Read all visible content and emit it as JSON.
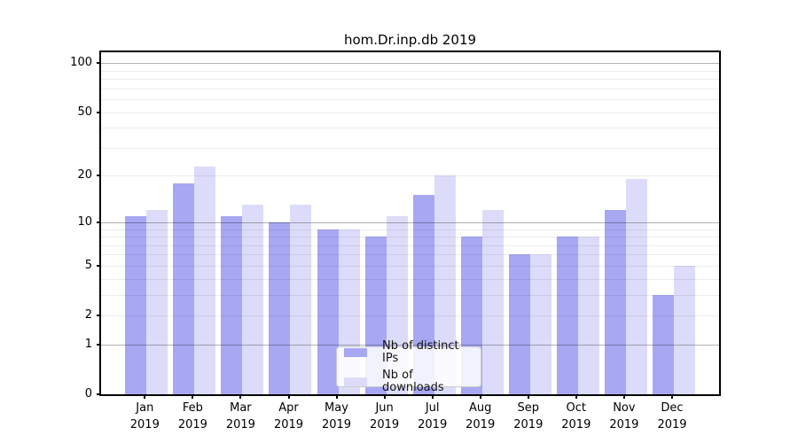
{
  "chart": {
    "title": "hom.Dr.inp.db 2019"
  },
  "chart_data": {
    "type": "bar",
    "title": "hom.Dr.inp.db 2019",
    "categories": [
      "Jan",
      "Feb",
      "Mar",
      "Apr",
      "May",
      "Jun",
      "Jul",
      "Aug",
      "Sep",
      "Oct",
      "Nov",
      "Dec"
    ],
    "category_year_line": "2019",
    "series": [
      {
        "name": "Nb of distinct IPs",
        "color": "#a7a7f4",
        "values": [
          11,
          18,
          11,
          10,
          9,
          8,
          15,
          8,
          6,
          8,
          12,
          3
        ]
      },
      {
        "name": "Nb of downloads",
        "color": "#dcdcfa",
        "values": [
          12,
          23,
          13,
          13,
          9,
          11,
          20,
          12,
          6,
          8,
          19,
          5
        ]
      }
    ],
    "xlabel": "",
    "ylabel": "",
    "y_axis": {
      "tick_labels": [
        "100",
        "50",
        "20",
        "10",
        "5",
        "2",
        "1",
        "0"
      ],
      "tick_values": [
        100,
        50,
        20,
        10,
        5,
        2,
        1,
        0
      ],
      "scale": "symlog (pixel position proportional to ln(1+value))",
      "ylim": [
        0,
        114
      ],
      "major_gridline_values": [
        1,
        10,
        100
      ],
      "minor_gridline_values": [
        2,
        3,
        4,
        5,
        6,
        7,
        8,
        9,
        20,
        30,
        40,
        50,
        60,
        70,
        80,
        90
      ]
    },
    "grid": true,
    "legend": {
      "entries": [
        "Nb of distinct IPs",
        "Nb of downloads"
      ],
      "position": "lower center, inside plot"
    },
    "colors": {
      "bar_distinct_ips": "#a7a7f4",
      "bar_downloads": "#dcdcfa",
      "major_gridline": "#b3b3b3",
      "minor_gridline": "#ececec",
      "axis": "#000000",
      "background": "#ffffff"
    }
  }
}
